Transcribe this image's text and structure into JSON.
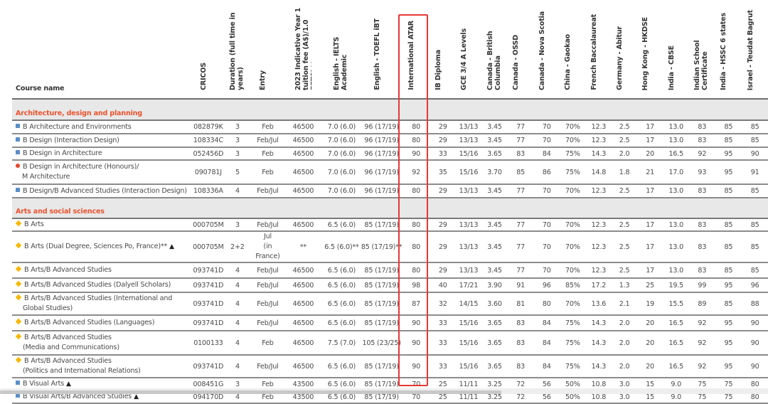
{
  "columns": [
    "Course name",
    "CRICOS",
    "Duration (full time in years)",
    "Entry",
    "2023 Indicative Year 1 tuition fee (A$)/1.0 EFTSL**",
    "English - IELTS Academic",
    "English - TOEFL iBT",
    "International ATAR",
    "IB Diploma",
    "GCE 3/4 A Levels",
    "Canada - British Columbia",
    "Canada - OSSD",
    "Canada - Nova Scotia",
    "China - Gaokao",
    "French Baccalaureat",
    "Germany - Abitur",
    "Hong Kong - HKDSE",
    "India - CBSE",
    "Indian School Certificate",
    "India - HSSC 6 states",
    "Israel - Teudat Bagrut"
  ],
  "highlighted_column": "International ATAR",
  "highlight_color": "#e53935",
  "section_color": "#e8532f",
  "marker_colors": {
    "square": "#5b8ec9",
    "dot": "#e8452c",
    "diamond": "#f5b800"
  },
  "sections": [
    {
      "title": "Architecture, design and planning",
      "rows": [
        {
          "marker": "square",
          "name": [
            "B Architecture and Environments"
          ],
          "triangle": false,
          "values": [
            "082879K",
            "3",
            "Feb",
            "46500",
            "7.0 (6.0)",
            "96 (17/19)",
            "80",
            "29",
            "13/13",
            "3.45",
            "77",
            "70",
            "70%",
            "12.3",
            "2.5",
            "17",
            "13.0",
            "83",
            "85",
            "85"
          ]
        },
        {
          "marker": "square",
          "name": [
            "B Design (Interaction Design)"
          ],
          "triangle": false,
          "values": [
            "108334C",
            "3",
            "Feb/Jul",
            "46500",
            "7.0 (6.0)",
            "96 (17/19)",
            "80",
            "29",
            "13/13",
            "3.45",
            "77",
            "70",
            "70%",
            "12.3",
            "2.5",
            "17",
            "13.0",
            "83",
            "85",
            "85"
          ]
        },
        {
          "marker": "square",
          "name": [
            "B Design in Architecture"
          ],
          "triangle": false,
          "values": [
            "052456D",
            "3",
            "Feb",
            "46500",
            "7.0 (6.0)",
            "96 (17/19)",
            "90",
            "33",
            "15/16",
            "3.65",
            "83",
            "84",
            "75%",
            "14.3",
            "2.0",
            "20",
            "16.5",
            "92",
            "95",
            "90"
          ]
        },
        {
          "marker": "dot",
          "name": [
            "B Design in Architecture (Honours)/",
            "M Architecture"
          ],
          "triangle": false,
          "values": [
            "090781J",
            "5",
            "Feb",
            "46500",
            "7.0 (6.0)",
            "96 (17/19)",
            "92",
            "35",
            "15/16",
            "3.70",
            "85",
            "86",
            "75%",
            "14.8",
            "1.8",
            "21",
            "17.0",
            "93",
            "95",
            "91"
          ]
        },
        {
          "marker": "square",
          "name": [
            "B Design/B Advanced Studies (Interaction Design)"
          ],
          "triangle": false,
          "values": [
            "108336A",
            "4",
            "Feb/Jul",
            "46500",
            "7.0 (6.0)",
            "96 (17/19)",
            "80",
            "29",
            "13/13",
            "3.45",
            "77",
            "70",
            "70%",
            "12.3",
            "2.5",
            "17",
            "13.0",
            "83",
            "85",
            "85"
          ]
        }
      ]
    },
    {
      "title": "Arts and social sciences",
      "rows": [
        {
          "marker": "diamond",
          "name": [
            "B Arts"
          ],
          "triangle": false,
          "values": [
            "000705M",
            "3",
            "Feb/Jul",
            "46500",
            "6.5 (6.0)",
            "85 (17/19)",
            "80",
            "29",
            "13/13",
            "3.45",
            "77",
            "70",
            "70%",
            "12.3",
            "2.5",
            "17",
            "13.0",
            "83",
            "85",
            "85"
          ]
        },
        {
          "marker": "diamond",
          "name": [
            "B Arts (Dual Degree, Sciences Po, France)**"
          ],
          "triangle": true,
          "values": [
            "000705M",
            "2+2",
            "Jul\n(in France)",
            "**",
            "6.5 (6.0)**",
            "85 (17/19)**",
            "80",
            "29",
            "13/13",
            "3.45",
            "77",
            "70",
            "70%",
            "12.3",
            "2.5",
            "17",
            "13.0",
            "83",
            "85",
            "85"
          ]
        },
        {
          "marker": "diamond",
          "name": [
            "B Arts/B Advanced Studies"
          ],
          "triangle": false,
          "values": [
            "093741D",
            "4",
            "Feb/Jul",
            "46500",
            "6.5 (6.0)",
            "85 (17/19)",
            "80",
            "29",
            "13/13",
            "3.45",
            "77",
            "70",
            "70%",
            "12.3",
            "2.5",
            "17",
            "13.0",
            "83",
            "85",
            "85"
          ]
        },
        {
          "marker": "diamond",
          "name": [
            "B Arts/B Advanced Studies (Dalyell Scholars)"
          ],
          "triangle": false,
          "values": [
            "093741D",
            "4",
            "Feb/Jul",
            "46500",
            "6.5 (6.0)",
            "85 (17/19)",
            "98",
            "40",
            "17/21",
            "3.90",
            "91",
            "96",
            "85%",
            "17.2",
            "1.3",
            "25",
            "19.5",
            "99",
            "95",
            "96"
          ]
        },
        {
          "marker": "diamond",
          "name": [
            "B Arts/B Advanced Studies (International and",
            "Global Studies)"
          ],
          "triangle": false,
          "values": [
            "093741D",
            "4",
            "Feb/Jul",
            "46500",
            "6.5 (6.0)",
            "85 (17/19)",
            "87",
            "32",
            "14/15",
            "3.60",
            "81",
            "80",
            "70%",
            "13.6",
            "2.1",
            "19",
            "15.5",
            "89",
            "85",
            "88"
          ]
        },
        {
          "marker": "diamond",
          "name": [
            "B Arts/B Advanced Studies (Languages)"
          ],
          "triangle": false,
          "values": [
            "093741D",
            "4",
            "Feb/Jul",
            "46500",
            "6.5 (6.0)",
            "85 (17/19)",
            "90",
            "33",
            "15/16",
            "3.65",
            "83",
            "84",
            "75%",
            "14.3",
            "2.0",
            "20",
            "16.5",
            "92",
            "95",
            "90"
          ]
        },
        {
          "marker": "diamond",
          "name": [
            "B Arts/B Advanced Studies",
            "(Media and Communications)"
          ],
          "triangle": false,
          "values": [
            "0100133",
            "4",
            "Feb",
            "46500",
            "7.5 (7.0)",
            "105 (23/25)",
            "90",
            "33",
            "15/16",
            "3.65",
            "83",
            "84",
            "75%",
            "14.3",
            "2.0",
            "20",
            "16.5",
            "92",
            "95",
            "90"
          ]
        },
        {
          "marker": "diamond",
          "name": [
            "B Arts/B Advanced Studies",
            "(Politics and International Relations)"
          ],
          "triangle": false,
          "values": [
            "093741D",
            "4",
            "Feb/Jul",
            "46500",
            "6.5 (6.0)",
            "85 (17/19)",
            "90",
            "33",
            "15/16",
            "3.65",
            "83",
            "84",
            "75%",
            "14.3",
            "2.0",
            "20",
            "16.5",
            "92",
            "95",
            "90"
          ]
        },
        {
          "marker": "square",
          "name": [
            "B Visual Arts"
          ],
          "triangle": true,
          "values": [
            "008451G",
            "3",
            "Feb",
            "43500",
            "6.5 (6.0)",
            "85 (17/19)",
            "70",
            "25",
            "11/11",
            "3.25",
            "72",
            "56",
            "50%",
            "10.8",
            "3.0",
            "15",
            "9.0",
            "75",
            "75",
            "80"
          ]
        },
        {
          "marker": "square",
          "name": [
            "B Visual Arts/B Advanced Studies"
          ],
          "triangle": true,
          "values": [
            "094170D",
            "4",
            "Feb",
            "43500",
            "6.5 (6.0)",
            "85 (17/19)",
            "70",
            "25",
            "11/11",
            "3.25",
            "72",
            "56",
            "50%",
            "10.8",
            "3.0",
            "15",
            "9.0",
            "75",
            "75",
            "80"
          ]
        }
      ]
    }
  ]
}
